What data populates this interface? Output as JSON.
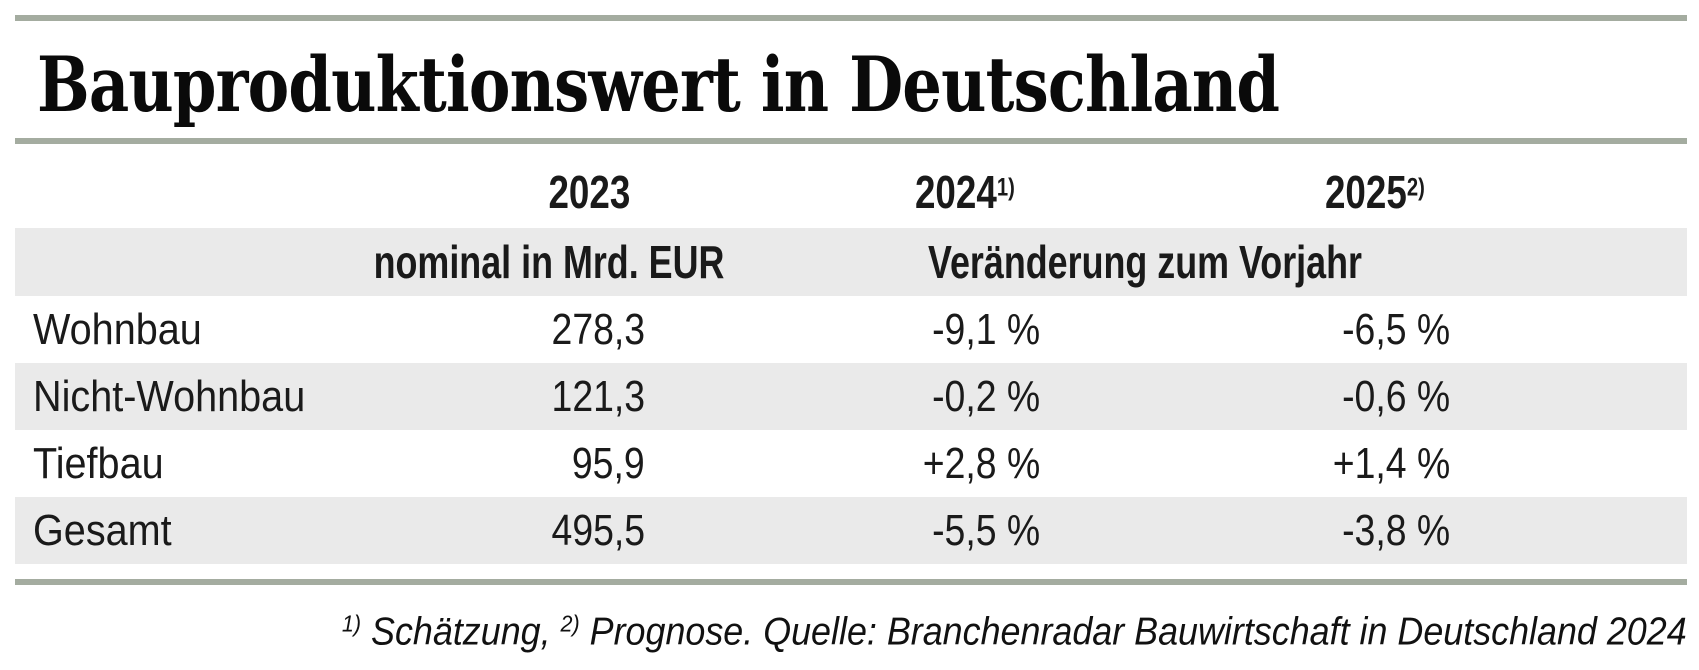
{
  "title": "Bauproduktionswert in Deutschland",
  "colors": {
    "accent_bar": "#a4aca0",
    "row_band": "#eaeaea",
    "text": "#1a1a1a"
  },
  "table": {
    "col_labels": {
      "y2023": "2023",
      "y2024": "2024",
      "y2024_sup": "1)",
      "y2025": "2025",
      "y2025_sup": "2)"
    },
    "subheaders": {
      "left": "nominal in Mrd. EUR",
      "right": "Veränderung zum Vorjahr"
    },
    "rows": [
      {
        "label": "Wohnbau",
        "v2023": "278,3",
        "v2024": "-9,1 %",
        "v2025": "-6,5 %"
      },
      {
        "label": "Nicht-Wohnbau",
        "v2023": "121,3",
        "v2024": "-0,2 %",
        "v2025": "-0,6 %"
      },
      {
        "label": "Tiefbau",
        "v2023": "95,9",
        "v2024": "+2,8 %",
        "v2025": "+1,4 %"
      },
      {
        "label": "Gesamt",
        "v2023": "495,5",
        "v2024": "-5,5 %",
        "v2025": "-3,8 %"
      }
    ]
  },
  "footnote": {
    "sup1": "1)",
    "text1": " Schätzung, ",
    "sup2": "2)",
    "text2": " Prognose. Quelle: Branchenradar Bauwirtschaft in Deutschland 2024"
  },
  "chart_data": {
    "type": "table",
    "title": "Bauproduktionswert in Deutschland",
    "categories": [
      "Wohnbau",
      "Nicht-Wohnbau",
      "Tiefbau",
      "Gesamt"
    ],
    "series": [
      {
        "name": "2023 nominal in Mrd. EUR",
        "values": [
          278.3,
          121.3,
          95.9,
          495.5
        ]
      },
      {
        "name": "2024 Veränderung zum Vorjahr in % (1) Schätzung)",
        "values": [
          -9.1,
          -0.2,
          2.8,
          -5.5
        ]
      },
      {
        "name": "2025 Veränderung zum Vorjahr in % (2) Prognose)",
        "values": [
          -6.5,
          -0.6,
          1.4,
          -3.8
        ]
      }
    ],
    "notes": "1) Schätzung, 2) Prognose. Quelle: Branchenradar Bauwirtschaft in Deutschland 2024"
  }
}
